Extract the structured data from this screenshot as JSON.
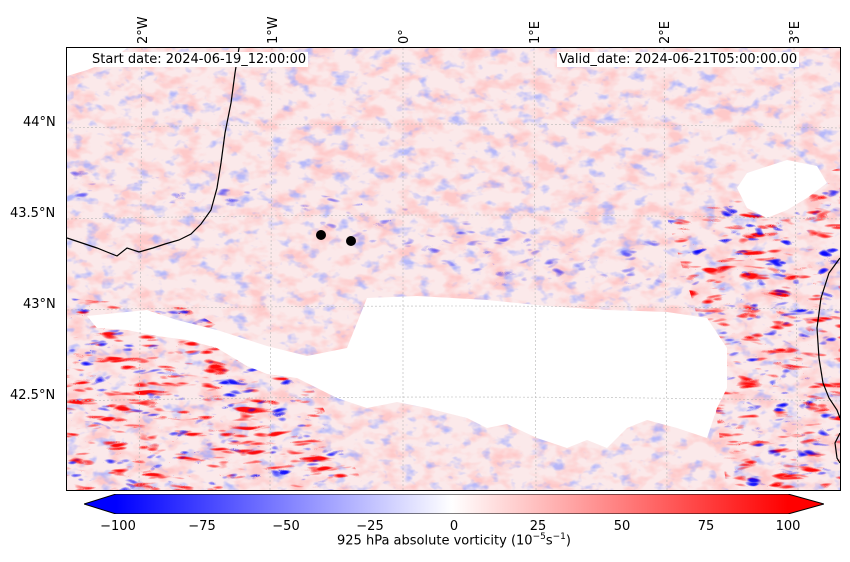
{
  "map": {
    "annotations": {
      "start_date": "Start date: 2024-06-19_12:00:00",
      "valid_date": "Valid_date: 2024-06-21T05:00:00.00"
    },
    "lon_labels": [
      "2°W",
      "1°W",
      "0°",
      "1°E",
      "2°E",
      "3°E"
    ],
    "lat_labels": [
      "44°N",
      "43.5°N",
      "43°N",
      "42.5°N"
    ],
    "markers": [
      {
        "name": "point-a"
      },
      {
        "name": "point-b"
      }
    ]
  },
  "colorbar": {
    "label_prefix": "925 hPa absolute vorticity (10",
    "label_exp1": "−5",
    "label_mid": "s",
    "label_exp2": "−1",
    "label_suffix": ")",
    "ticks": [
      "−100",
      "−75",
      "−50",
      "−25",
      "0",
      "25",
      "50",
      "75",
      "100"
    ],
    "min": -100,
    "max": 100,
    "colors": {
      "low": "#0000ff",
      "mid": "#ffffff",
      "high": "#ff0000"
    }
  }
}
